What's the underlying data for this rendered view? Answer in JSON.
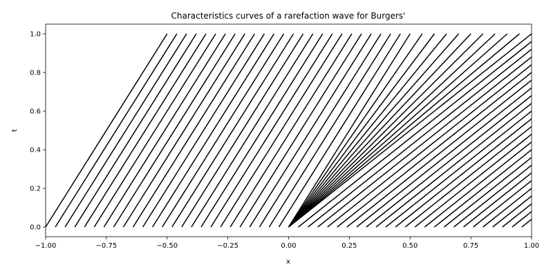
{
  "chart_data": {
    "type": "line",
    "title": "Characteristics curves of a rarefaction wave for Burgers'",
    "xlabel": "x",
    "ylabel": "t",
    "xlim": [
      -1.0,
      1.0
    ],
    "ylim": [
      -0.05,
      1.05
    ],
    "grid": false,
    "legend": "none",
    "line_color": "#000000",
    "x_ticks": [
      {
        "value": -1.0,
        "label": "−1.00"
      },
      {
        "value": -0.75,
        "label": "−0.75"
      },
      {
        "value": -0.5,
        "label": "−0.50"
      },
      {
        "value": -0.25,
        "label": "−0.25"
      },
      {
        "value": 0.0,
        "label": "0.00"
      },
      {
        "value": 0.25,
        "label": "0.25"
      },
      {
        "value": 0.5,
        "label": "0.50"
      },
      {
        "value": 0.75,
        "label": "0.75"
      },
      {
        "value": 1.0,
        "label": "1.00"
      }
    ],
    "y_ticks": [
      {
        "value": 0.0,
        "label": "0.0"
      },
      {
        "value": 0.2,
        "label": "0.2"
      },
      {
        "value": 0.4,
        "label": "0.4"
      },
      {
        "value": 0.6,
        "label": "0.6"
      },
      {
        "value": 0.8,
        "label": "0.8"
      },
      {
        "value": 1.0,
        "label": "1.0"
      }
    ],
    "left_family": {
      "description": "x0 from -1.0 to 0.0 step 0.04, slope speed 0.5: x = x0 + 0.5 t, t in [0,1]",
      "x0_start": -1.0,
      "x0_end": -0.04,
      "x0_step": 0.04,
      "speed": 0.5
    },
    "fan_family": {
      "origin": 0.0,
      "speeds": [
        0.5,
        0.55,
        0.6,
        0.65,
        0.7,
        0.75,
        0.8,
        0.85,
        0.9,
        0.95,
        1.0
      ]
    },
    "right_family": {
      "description": "x0 from 0.0 to 1.0 step 0.04, speed 1.0: x = x0 + t, t in [0,1], clipped at x = 1",
      "x0_start": 0.04,
      "x0_end": 0.96,
      "x0_step": 0.04,
      "speed": 1.0
    }
  }
}
